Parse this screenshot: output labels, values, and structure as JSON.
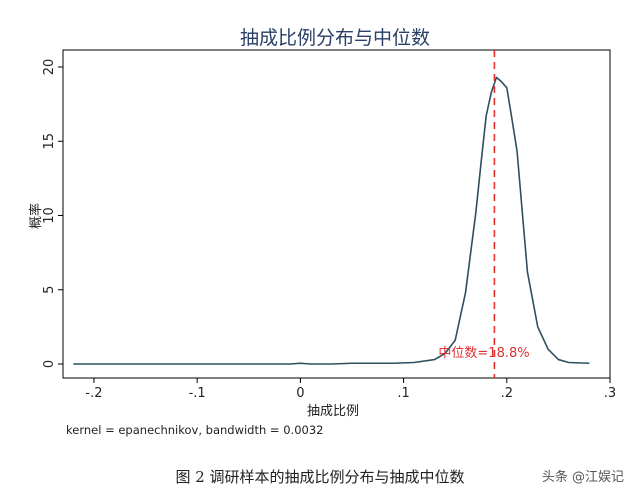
{
  "chart_data": {
    "type": "line",
    "title": "抽成比例分布与中位数",
    "xlabel": "抽成比例",
    "ylabel": "概率",
    "xlim": [
      -0.23,
      0.3
    ],
    "ylim": [
      0,
      20
    ],
    "xticks": [
      -0.2,
      -0.1,
      0,
      0.1,
      0.2,
      0.3
    ],
    "xtick_labels": [
      "-.2",
      "-.1",
      "0",
      ".1",
      ".2",
      ".3"
    ],
    "yticks": [
      0,
      5,
      10,
      15,
      20
    ],
    "ytick_labels": [
      "0",
      "5",
      "10",
      "15",
      "20"
    ],
    "grid": false,
    "series": [
      {
        "x": [
          -0.22,
          -0.15,
          -0.1,
          -0.05,
          -0.01,
          0.0,
          0.01,
          0.03,
          0.05,
          0.07,
          0.09,
          0.11,
          0.13,
          0.14,
          0.15,
          0.16,
          0.17,
          0.175,
          0.18,
          0.185,
          0.19,
          0.195,
          0.2,
          0.205,
          0.21,
          0.22,
          0.23,
          0.24,
          0.25,
          0.26,
          0.28
        ],
        "y": [
          0.0,
          0.0,
          0.0,
          0.0,
          0.0,
          0.05,
          0.0,
          0.0,
          0.05,
          0.05,
          0.05,
          0.1,
          0.3,
          0.7,
          1.6,
          4.8,
          10.2,
          13.5,
          16.7,
          18.3,
          19.3,
          19.0,
          18.6,
          16.5,
          14.3,
          6.2,
          2.5,
          1.0,
          0.3,
          0.1,
          0.05
        ]
      }
    ],
    "median": {
      "x": 0.188,
      "label": "中位数=18.8%"
    },
    "note": "kernel = epanechnikov, bandwidth = 0.0032",
    "colors": {
      "line": "#2f4f5f",
      "median": "#e03030",
      "axis": "#000000",
      "title": "#2a3f66"
    }
  },
  "caption": "图 2 调研样本的抽成比例分布与抽成中位数",
  "watermark": "头条 @江娱记"
}
